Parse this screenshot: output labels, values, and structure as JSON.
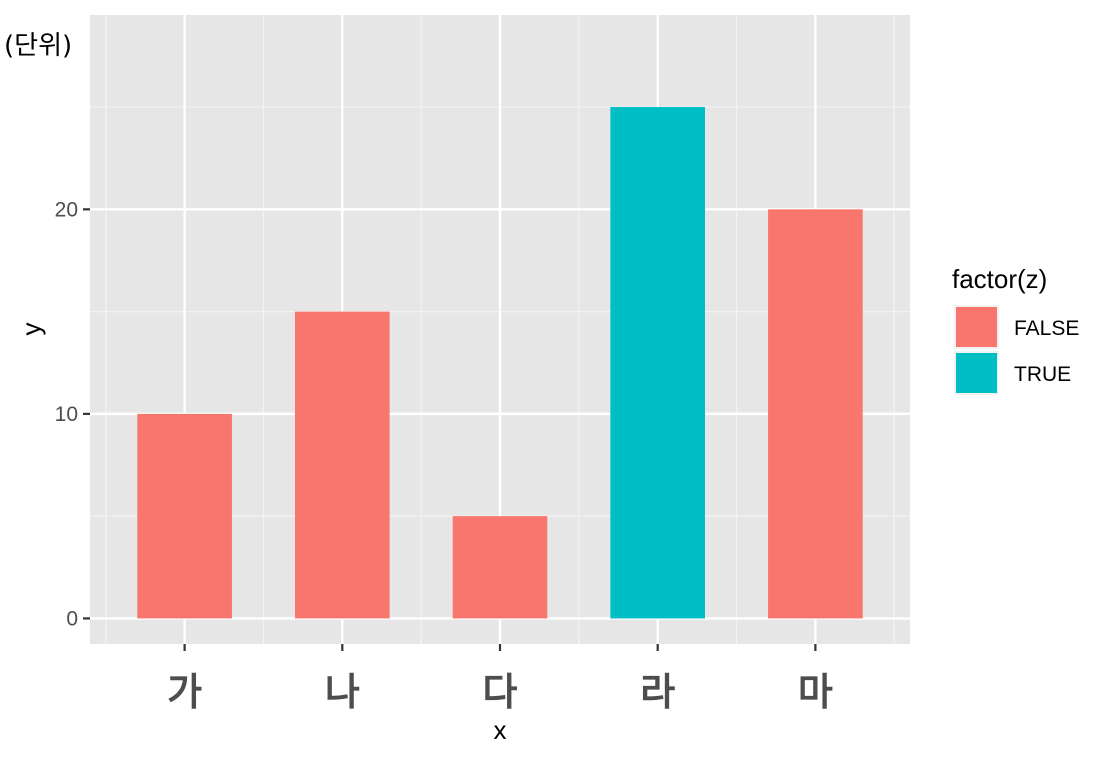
{
  "chart_data": {
    "type": "bar",
    "categories": [
      "가",
      "나",
      "다",
      "라",
      "마"
    ],
    "values": [
      10,
      15,
      5,
      25,
      20
    ],
    "fill_group": [
      "FALSE",
      "FALSE",
      "FALSE",
      "TRUE",
      "FALSE"
    ],
    "annotation": "(단위)",
    "xlabel": "x",
    "ylabel": "y",
    "ylim": [
      -1.25,
      29.5
    ],
    "yticks": [
      0,
      10,
      20
    ],
    "grid": true,
    "legend": {
      "title": "factor(z)",
      "position": "right",
      "entries": [
        {
          "label": "FALSE",
          "color": "#F8766D"
        },
        {
          "label": "TRUE",
          "color": "#00BFC4"
        }
      ]
    }
  }
}
